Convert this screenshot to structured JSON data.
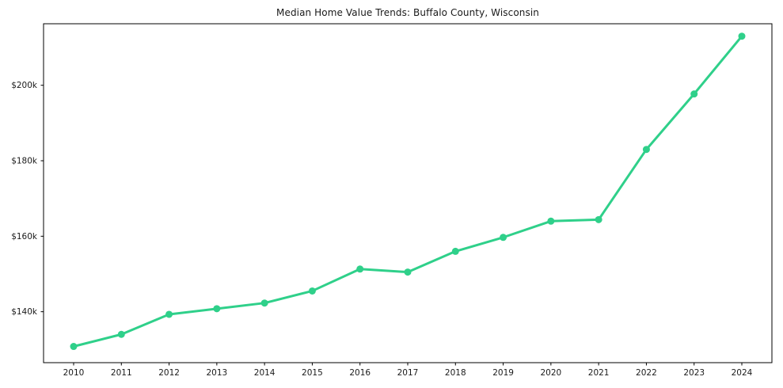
{
  "chart_data": {
    "type": "line",
    "title": "Median Home Value Trends: Buffalo County, Wisconsin",
    "xlabel": "",
    "ylabel": "",
    "x_labels": [
      "2010",
      "2011",
      "2012",
      "2013",
      "2014",
      "2015",
      "2016",
      "2017",
      "2018",
      "2019",
      "2020",
      "2021",
      "2022",
      "2023",
      "2024"
    ],
    "series": [
      {
        "name": "Median Home Value",
        "color": "#2fd08a",
        "values": [
          130800,
          134000,
          139300,
          140800,
          142300,
          145500,
          151300,
          150500,
          156000,
          159700,
          164000,
          164400,
          183000,
          197700,
          213000
        ]
      }
    ],
    "ylim": [
      126500,
      216300
    ],
    "yticks": [
      {
        "value": 140000,
        "label": "$140k"
      },
      {
        "value": 160000,
        "label": "$160k"
      },
      {
        "value": 180000,
        "label": "$180k"
      },
      {
        "value": 200000,
        "label": "$200k"
      }
    ],
    "grid": false,
    "legend": "none",
    "colors": {
      "spine": "#000000",
      "tick_text": "#1a1a1a",
      "background": "#ffffff"
    }
  }
}
